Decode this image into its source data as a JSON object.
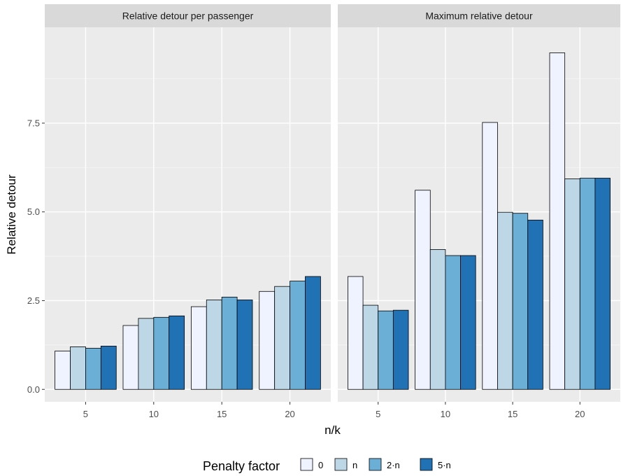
{
  "chart_data": {
    "type": "bar",
    "ylabel": "Relative detour",
    "xlabel": "n/k",
    "ylim": [
      -0.35,
      10.2
    ],
    "yticks": [
      0.0,
      2.5,
      5.0,
      7.5
    ],
    "ytick_labels": [
      "0.0",
      "2.5",
      "5.0",
      "7.5"
    ],
    "categories": [
      "5",
      "10",
      "15",
      "20"
    ],
    "legend": {
      "title": "Penalty factor",
      "placement": "bottom",
      "entries": [
        "0",
        "n",
        "2·n",
        "5·n"
      ]
    },
    "colors": [
      "#eff3ff",
      "#bdd7e7",
      "#6baed6",
      "#2171b5"
    ],
    "background": "#ebebeb",
    "strip_background": "#d9d9d9",
    "grid": true,
    "facets": [
      {
        "title": "Relative detour per passenger",
        "series": [
          {
            "name": "0",
            "values": [
              1.08,
              1.8,
              2.33,
              2.76
            ]
          },
          {
            "name": "n",
            "values": [
              1.2,
              2.0,
              2.52,
              2.9
            ]
          },
          {
            "name": "2·n",
            "values": [
              1.16,
              2.03,
              2.6,
              3.05
            ]
          },
          {
            "name": "5·n",
            "values": [
              1.22,
              2.07,
              2.52,
              3.18
            ]
          }
        ]
      },
      {
        "title": "Maximum relative detour",
        "series": [
          {
            "name": "0",
            "values": [
              3.18,
              5.61,
              7.52,
              9.48
            ]
          },
          {
            "name": "n",
            "values": [
              2.37,
              3.94,
              4.99,
              5.93
            ]
          },
          {
            "name": "2·n",
            "values": [
              2.21,
              3.77,
              4.96,
              5.95
            ]
          },
          {
            "name": "5·n",
            "values": [
              2.23,
              3.77,
              4.77,
              5.95
            ]
          }
        ]
      }
    ]
  }
}
